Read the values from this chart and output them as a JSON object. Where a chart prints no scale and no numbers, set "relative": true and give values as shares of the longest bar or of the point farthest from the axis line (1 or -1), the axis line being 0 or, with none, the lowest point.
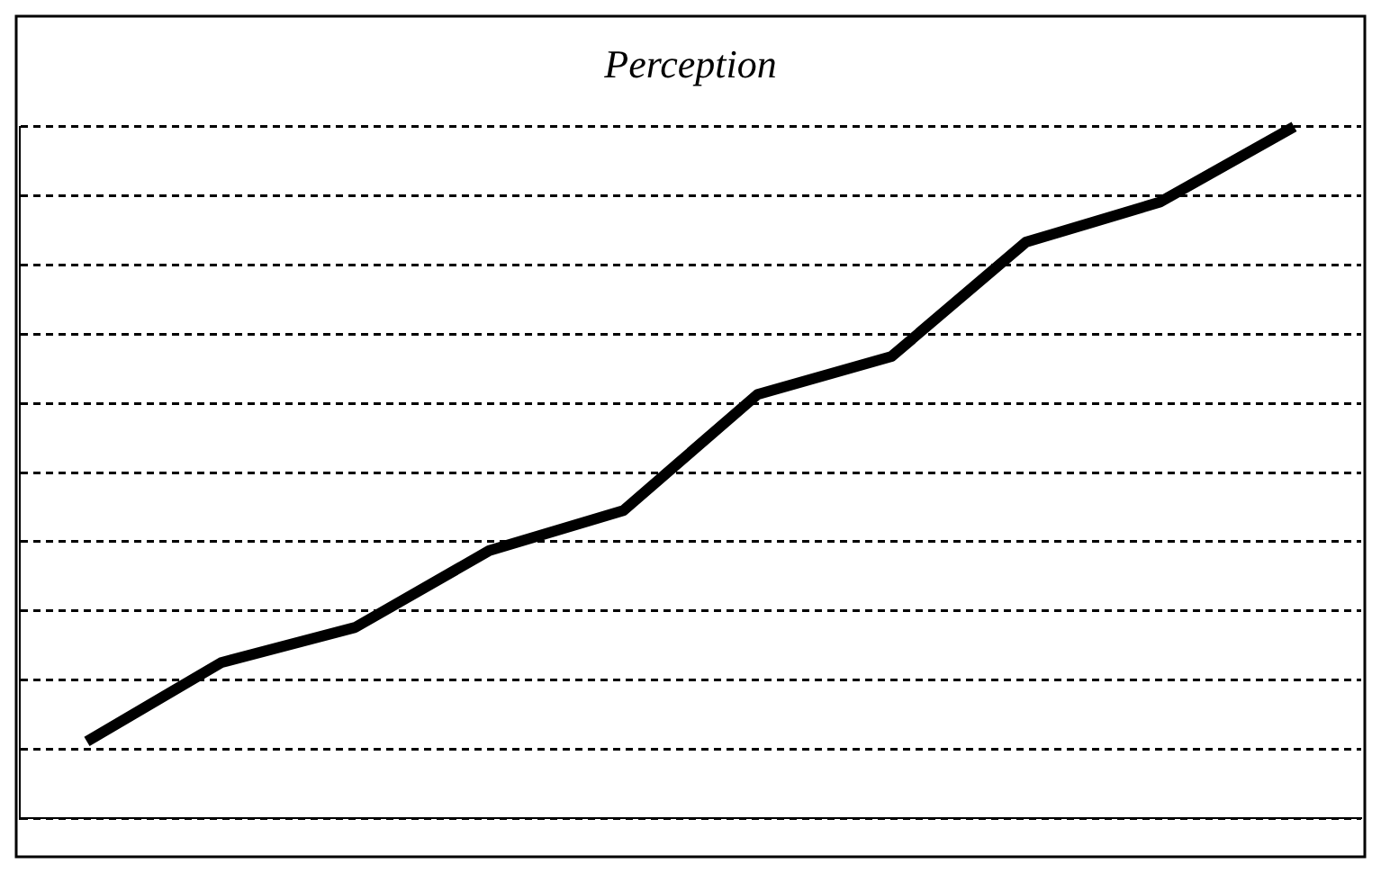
{
  "chart_data": {
    "type": "line",
    "title": "Perception",
    "relative": true,
    "grid": "y",
    "legend": false,
    "marker": "none",
    "line_style": "solid",
    "categories": [
      null,
      null,
      null,
      null,
      null,
      null,
      null,
      null,
      null,
      null
    ],
    "series": [
      {
        "color": "#000000",
        "values": [
          0.111,
          0.225,
          0.276,
          0.387,
          0.445,
          0.613,
          0.668,
          0.833,
          0.891,
          1
        ]
      }
    ]
  }
}
